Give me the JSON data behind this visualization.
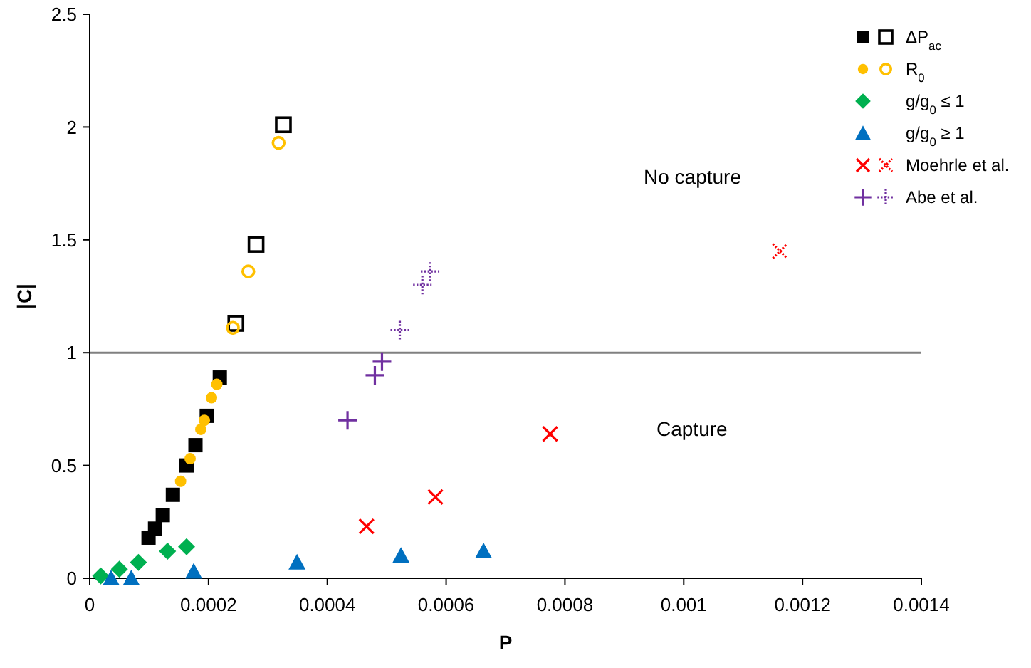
{
  "chart_data": {
    "type": "scatter",
    "xlabel": "P",
    "ylabel": "|C|",
    "xlim": [
      0,
      0.0014
    ],
    "ylim": [
      0,
      2.5
    ],
    "xticks": [
      0,
      0.0002,
      0.0004,
      0.0006,
      0.0008,
      0.001,
      0.0012,
      0.0014
    ],
    "yticks": [
      0,
      0.5,
      1,
      1.5,
      2,
      2.5
    ],
    "grid": false,
    "legend": "top right",
    "series": [
      {
        "name": "ΔP$_{ac}$",
        "color": "#000000",
        "marker": "square",
        "x": [
          9.9e-05,
          0.00011,
          0.000123,
          0.00014,
          0.000163,
          0.000178,
          0.000197,
          0.000219
        ],
        "values": [
          0.18,
          0.22,
          0.28,
          0.37,
          0.5,
          0.59,
          0.72,
          0.89
        ]
      },
      {
        "color": "#000000",
        "marker": "square-open",
        "x": [
          0.000246,
          0.00028,
          0.000326
        ],
        "values": [
          1.13,
          1.48,
          2.01
        ]
      },
      {
        "name": "R$_{0}$",
        "color": "#ffc000",
        "marker": "circle",
        "x": [
          0.000153,
          0.000169,
          0.000187,
          0.000193,
          0.000205,
          0.000214
        ],
        "values": [
          0.43,
          0.53,
          0.66,
          0.7,
          0.8,
          0.86
        ]
      },
      {
        "color": "#ffc000",
        "marker": "circle-open",
        "x": [
          0.000241,
          0.000267,
          0.000318
        ],
        "values": [
          1.11,
          1.36,
          1.93
        ]
      },
      {
        "name": "g/g$_{0}$ ≤ 1",
        "color": "#00b050",
        "marker": "diamond",
        "x": [
          1.85e-05,
          5e-05,
          8.2e-05,
          0.000131,
          0.000163
        ],
        "values": [
          0.01,
          0.04,
          0.07,
          0.12,
          0.14
        ]
      },
      {
        "name": "g/g$_{0}$ ≥ 1",
        "color": "#0070c0",
        "marker": "triangle",
        "x": [
          3.6e-05,
          7e-05,
          0.000175,
          0.000349,
          0.000524,
          0.000663
        ],
        "values": [
          0,
          0,
          0.03,
          0.07,
          0.1,
          0.12
        ]
      },
      {
        "name": "Moehrle et al.",
        "color": "#ff0000",
        "marker": "cross",
        "x": [
          0.000466,
          0.000582,
          0.000775
        ],
        "values": [
          0.23,
          0.36,
          0.64
        ]
      },
      {
        "color": "#ff0000",
        "marker": "cross",
        "line_style": "dotted",
        "x": [
          0.001162
        ],
        "values": [
          1.45
        ]
      },
      {
        "name": "Abe et al.",
        "color": "#7030a0",
        "marker": "plus",
        "x": [
          0.000434,
          0.00048,
          0.000492
        ],
        "values": [
          0.7,
          0.9,
          0.96
        ]
      },
      {
        "color": "#7030a0",
        "marker": "plus",
        "line_style": "dotted",
        "x": [
          0.000522,
          0.00056,
          0.000573
        ],
        "values": [
          1.1,
          1.3,
          1.36
        ]
      }
    ],
    "ref_lines": [
      {
        "axis": "y",
        "value": 1,
        "color": "#808080"
      }
    ],
    "annotations": [
      "No capture",
      "Capture"
    ]
  }
}
